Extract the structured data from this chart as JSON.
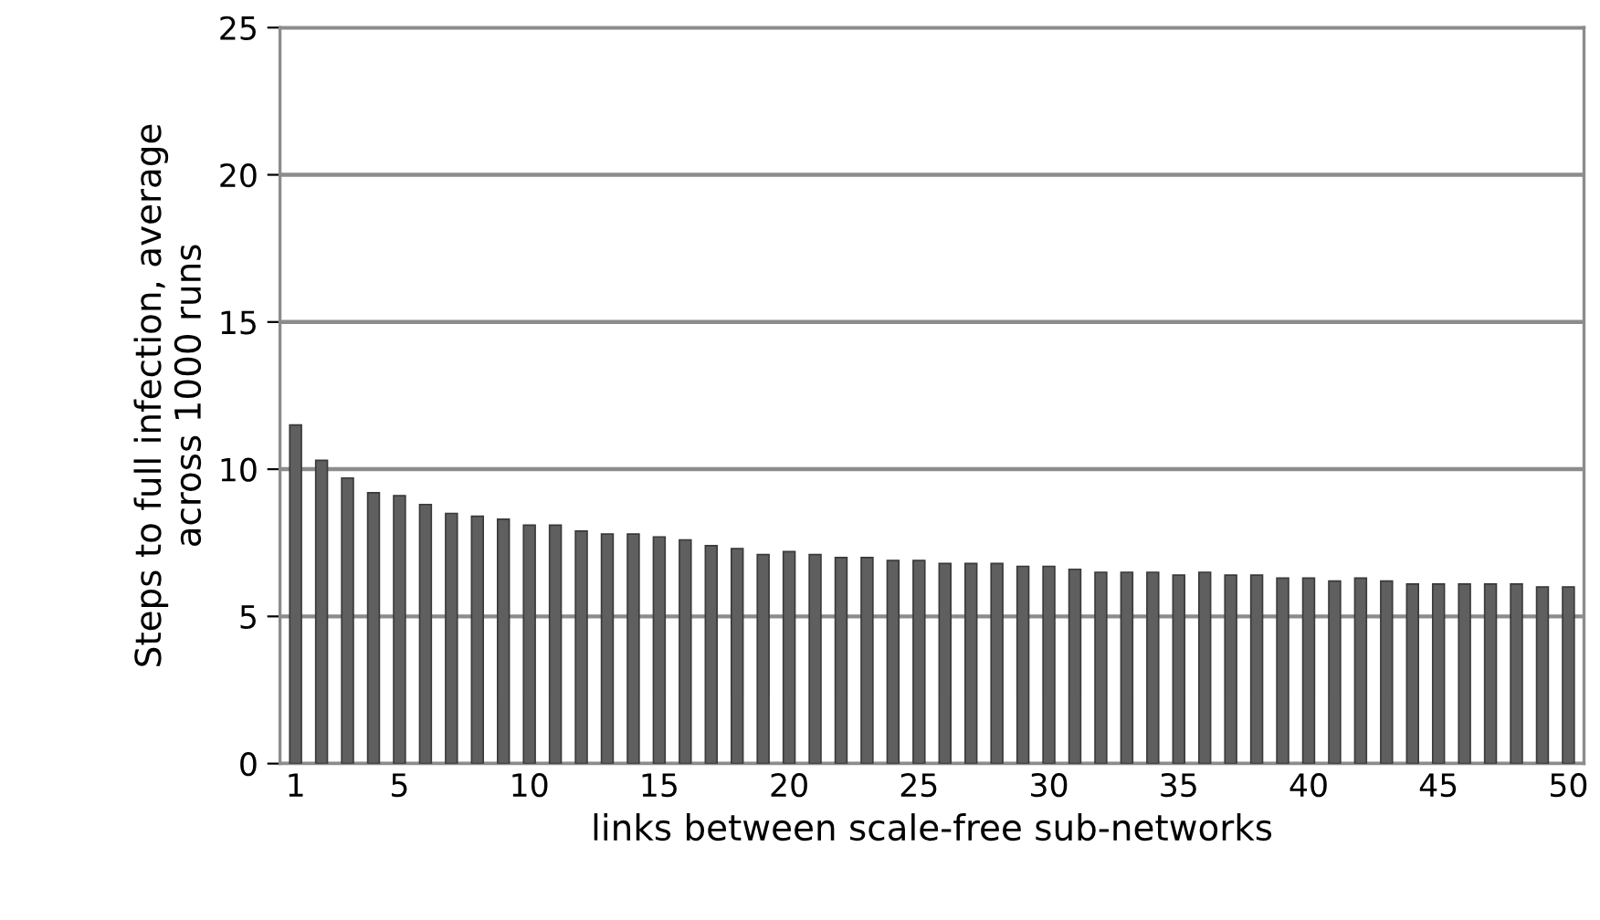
{
  "chart_data": {
    "type": "bar",
    "xlabel": "links between scale-free sub-networks",
    "ylabel": "Steps to full infection, average\nacross 1000 runs",
    "categories": [
      "1",
      null,
      null,
      null,
      "5",
      null,
      null,
      null,
      null,
      "10",
      null,
      null,
      null,
      null,
      "15",
      null,
      null,
      null,
      null,
      "20",
      null,
      null,
      null,
      null,
      "25",
      null,
      null,
      null,
      null,
      "30",
      null,
      null,
      null,
      null,
      "35",
      null,
      null,
      null,
      null,
      "40",
      null,
      null,
      null,
      null,
      "45",
      null,
      null,
      null,
      null,
      "50"
    ],
    "values": [
      11.5,
      10.3,
      9.7,
      9.2,
      9.1,
      8.8,
      8.5,
      8.4,
      8.3,
      8.1,
      8.1,
      7.9,
      7.8,
      7.8,
      7.7,
      7.6,
      7.4,
      7.3,
      7.1,
      7.2,
      7.1,
      7.0,
      7.0,
      6.9,
      6.9,
      6.8,
      6.8,
      6.8,
      6.7,
      6.7,
      6.6,
      6.5,
      6.5,
      6.5,
      6.4,
      6.5,
      6.4,
      6.4,
      6.3,
      6.3,
      6.2,
      6.3,
      6.2,
      6.1,
      6.1,
      6.1,
      6.1,
      6.1,
      6.0,
      6.0
    ],
    "color": "#5f5f5f",
    "ylim": [
      0,
      25
    ],
    "yticks": [
      0,
      5,
      10,
      15,
      20,
      25
    ],
    "grid": "y",
    "legend": false
  }
}
